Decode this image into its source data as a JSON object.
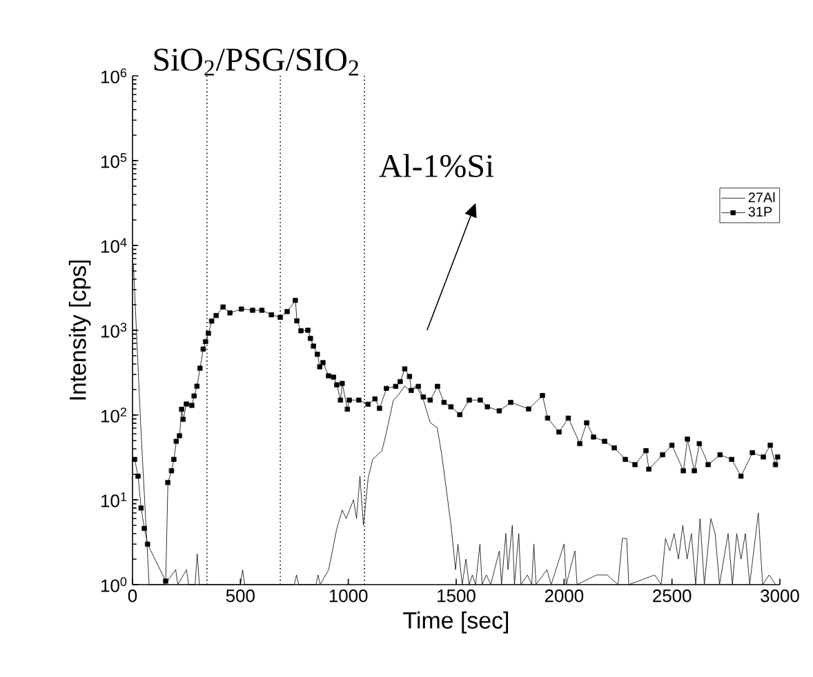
{
  "chart_data": {
    "type": "line",
    "xlabel": "Time [sec]",
    "ylabel": "Intensity [cps]",
    "annotations": [
      "SiO$_{2}$/PSG/SIO$_{2}$",
      "Al-1%Si"
    ],
    "xlim": [
      0,
      3000
    ],
    "xticks": [
      0,
      500,
      1000,
      1500,
      2000,
      2500,
      3000
    ],
    "ylim": [
      1,
      1000000
    ],
    "log": "y",
    "yticks": [
      {
        "value": 1,
        "label": "10$^{0}$"
      },
      {
        "value": 10,
        "label": "10$^{1}$"
      },
      {
        "value": 100,
        "label": "10$^{2}$"
      },
      {
        "value": 1000,
        "label": "10$^{3}$"
      },
      {
        "value": 10000,
        "label": "10$^{4}$"
      },
      {
        "value": 100000,
        "label": "10$^{5}$"
      },
      {
        "value": 1000000,
        "label": "10$^{6}$"
      }
    ],
    "grid": false,
    "legend": "top right",
    "ref_lines": [
      {
        "axis": "x",
        "value": 345,
        "line_style": "dotted"
      },
      {
        "axis": "x",
        "value": 685,
        "line_style": "dotted"
      },
      {
        "axis": "x",
        "value": 1075,
        "line_style": "dotted"
      }
    ],
    "series": [
      {
        "name": "27Al",
        "color": "#000000",
        "marker": "none",
        "x": [
          4,
          40,
          77,
          150,
          200,
          210,
          250,
          260,
          290,
          300,
          310,
          500,
          510,
          520,
          750,
          760,
          770,
          850,
          860,
          870,
          909,
          947,
          972,
          990,
          1024,
          1038,
          1054,
          1070,
          1092,
          1113,
          1156,
          1177,
          1209,
          1230,
          1262,
          1284,
          1316,
          1348,
          1380,
          1412,
          1433,
          1453,
          1476,
          1497,
          1508,
          1528,
          1545,
          1560,
          1575,
          1590,
          1610,
          1620,
          1640,
          1660,
          1700,
          1710,
          1730,
          1740,
          1760,
          1770,
          1790,
          1800,
          1830,
          1850,
          1860,
          1870,
          1920,
          1940,
          2000,
          2010,
          2050,
          2060,
          2150,
          2200,
          2250,
          2270,
          2290,
          2300,
          2420,
          2450,
          2470,
          2490,
          2510,
          2530,
          2550,
          2570,
          2590,
          2610,
          2630,
          2650,
          2680,
          2700,
          2720,
          2760,
          2780,
          2800,
          2820,
          2840,
          2860,
          2900,
          2920,
          2950,
          2980
        ],
        "values": [
          6000,
          60,
          1,
          1,
          1.5,
          1,
          1.5,
          1,
          1,
          2.3,
          1,
          1,
          1.5,
          1,
          1,
          1.3,
          1,
          1,
          1.3,
          1,
          1.5,
          4.6,
          7.6,
          6,
          10,
          6,
          19,
          5,
          18,
          30,
          38,
          63,
          150,
          170,
          220,
          195,
          220,
          150,
          81,
          71,
          34,
          14,
          5,
          1.5,
          3,
          1,
          2,
          1,
          1.3,
          1,
          3,
          1,
          1.3,
          1,
          2.5,
          1,
          4,
          1.5,
          5,
          1,
          4,
          1,
          1.3,
          1,
          3,
          1,
          1.5,
          1,
          3,
          1,
          2.5,
          1,
          1.3,
          1.3,
          1,
          3.5,
          3.5,
          1,
          1.3,
          1,
          3.5,
          2.5,
          4,
          2,
          5,
          2,
          4,
          1,
          6,
          1,
          6,
          4,
          1,
          4,
          1,
          4,
          2,
          4,
          1,
          7,
          1,
          1.3,
          1
        ]
      },
      {
        "name": "31P",
        "color": "#000000",
        "marker": "square",
        "x": [
          10,
          26,
          40,
          55,
          70,
          154,
          164,
          181,
          192,
          203,
          218,
          228,
          235,
          250,
          275,
          286,
          299,
          313,
          328,
          339,
          352,
          367,
          388,
          420,
          452,
          505,
          557,
          600,
          644,
          685,
          717,
          755,
          762,
          781,
          813,
          825,
          839,
          857,
          868,
          883,
          909,
          932,
          947,
          964,
          972,
          996,
          1005,
          1049,
          1092,
          1124,
          1145,
          1177,
          1220,
          1241,
          1262,
          1284,
          1292,
          1325,
          1348,
          1380,
          1414,
          1444,
          1476,
          1517,
          1561,
          1612,
          1645,
          1700,
          1753,
          1836,
          1900,
          1924,
          1977,
          2020,
          2073,
          2105,
          2137,
          2188,
          2233,
          2284,
          2329,
          2380,
          2393,
          2457,
          2500,
          2553,
          2572,
          2604,
          2627,
          2668,
          2723,
          2777,
          2820,
          2873,
          2924,
          2956,
          2980,
          2990
        ],
        "values": [
          30,
          19,
          8,
          4.6,
          3,
          1.1,
          16,
          22,
          30,
          49,
          57,
          117,
          89,
          135,
          130,
          168,
          219,
          357,
          600,
          735,
          920,
          1280,
          1490,
          1880,
          1600,
          1780,
          1720,
          1720,
          1520,
          1420,
          1660,
          2250,
          1290,
          985,
          1000,
          800,
          650,
          520,
          370,
          415,
          290,
          280,
          227,
          150,
          236,
          117,
          150,
          150,
          134,
          155,
          120,
          206,
          218,
          248,
          350,
          285,
          195,
          218,
          163,
          150,
          218,
          141,
          125,
          101,
          150,
          150,
          125,
          112,
          141,
          118,
          170,
          92,
          63,
          92,
          46,
          81,
          55,
          49,
          41,
          30,
          26,
          38,
          23,
          34,
          44,
          22,
          52,
          22,
          46,
          26,
          34,
          30,
          19,
          36,
          32,
          44,
          26,
          32
        ]
      }
    ]
  }
}
